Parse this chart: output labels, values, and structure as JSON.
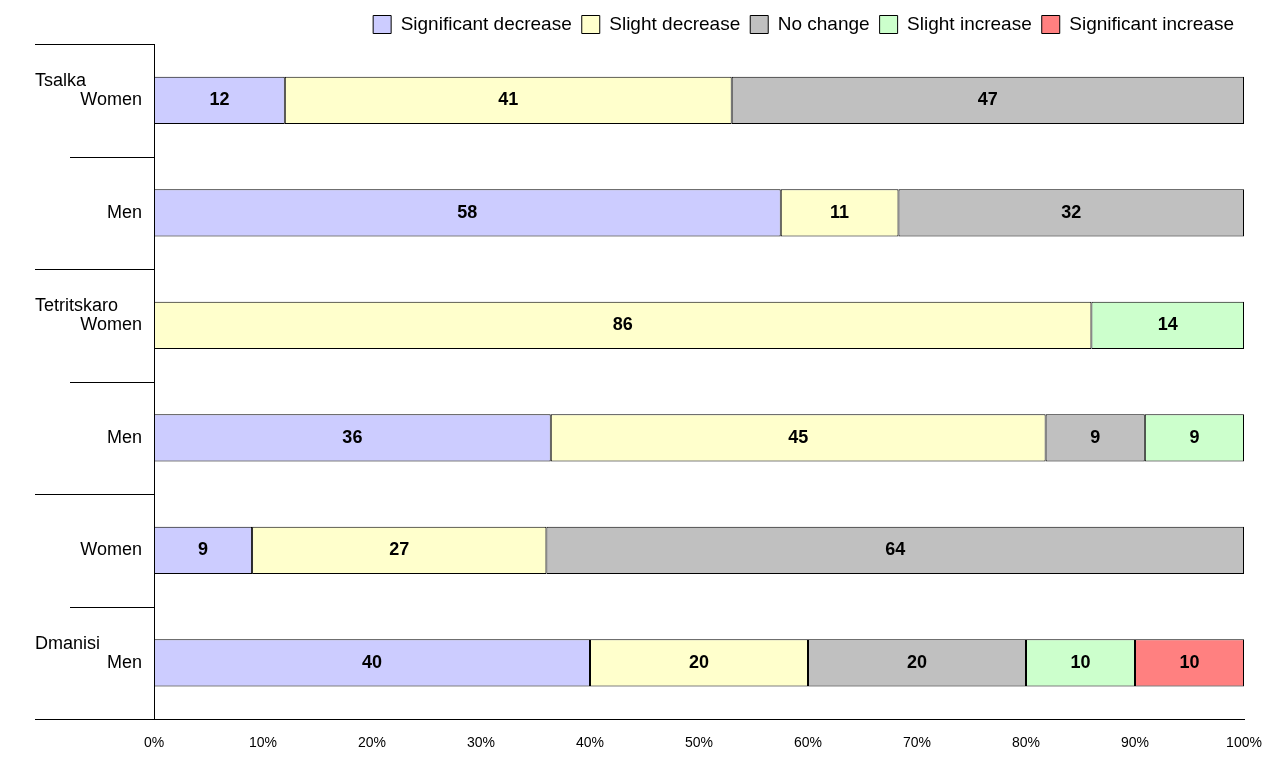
{
  "chart_data": {
    "type": "bar",
    "orientation": "horizontal",
    "stacked": true,
    "legend": "top",
    "categories": [
      "Women",
      "Men",
      "Women",
      "Men",
      "Women",
      "Men"
    ],
    "series": [
      {
        "name": "Significant decrease",
        "color": "#ccccff",
        "values": [
          12,
          57.5,
          0,
          36.4,
          9,
          40
        ],
        "value_labels": [
          "12",
          "58",
          null,
          "36",
          "9",
          "40"
        ]
      },
      {
        "name": "Slight decrease",
        "color": "#ffffcc",
        "values": [
          41,
          10.8,
          86,
          45.4,
          27,
          20
        ],
        "value_labels": [
          "41",
          "11",
          "86",
          "45",
          "27",
          "20"
        ]
      },
      {
        "name": "No change",
        "color": "#c0c0c0",
        "values": [
          47,
          31.7,
          0,
          9.1,
          64,
          20
        ],
        "value_labels": [
          "47",
          "32",
          null,
          "9",
          "64",
          "20"
        ]
      },
      {
        "name": "Slight increase",
        "color": "#ccffcc",
        "values": [
          0,
          0,
          14,
          9.1,
          0,
          10
        ],
        "value_labels": [
          null,
          null,
          "14",
          "9",
          null,
          "10"
        ]
      },
      {
        "name": "Significant increase",
        "color": "#ff8080",
        "values": [
          0,
          0,
          0,
          0,
          0,
          10
        ],
        "value_labels": [
          null,
          null,
          null,
          null,
          null,
          "10"
        ]
      }
    ],
    "xlim": [
      0,
      100
    ],
    "xticks": [
      {
        "value": 0,
        "label": "0%"
      },
      {
        "value": 10,
        "label": "10%"
      },
      {
        "value": 20,
        "label": "20%"
      },
      {
        "value": 30,
        "label": "30%"
      },
      {
        "value": 40,
        "label": "40%"
      },
      {
        "value": 50,
        "label": "50%"
      },
      {
        "value": 60,
        "label": "60%"
      },
      {
        "value": 70,
        "label": "70%"
      },
      {
        "value": 80,
        "label": "80%"
      },
      {
        "value": 90,
        "label": "90%"
      },
      {
        "value": 100,
        "label": "100%"
      }
    ],
    "grid": false,
    "annotations": [
      "Tsalka",
      "Tetritskaro",
      "Dmanisi"
    ]
  }
}
